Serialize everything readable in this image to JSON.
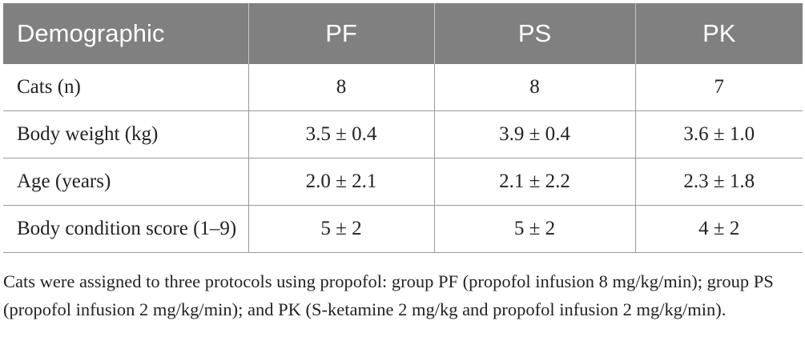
{
  "table": {
    "headers": [
      "Demographic",
      "PF",
      "PS",
      "PK"
    ],
    "rows": [
      {
        "label": "Cats (n)",
        "pf": "8",
        "ps": "8",
        "pk": "7"
      },
      {
        "label": "Body weight (kg)",
        "pf": "3.5 ± 0.4",
        "ps": "3.9 ± 0.4",
        "pk": "3.6 ± 1.0"
      },
      {
        "label": "Age (years)",
        "pf": "2.0 ± 2.1",
        "ps": "2.1 ± 2.2",
        "pk": "2.3 ± 1.8"
      },
      {
        "label": "Body condition score (1–9)",
        "pf": "5 ± 2",
        "ps": "5 ± 2",
        "pk": "4 ± 2"
      }
    ]
  },
  "caption": "Cats were assigned to three protocols using propofol: group PF (propofol infusion 8 mg/kg/min); group PS (propofol infusion 2 mg/kg/min); and PK (S-ketamine 2 mg/kg and propofol infusion 2 mg/kg/min).",
  "colors": {
    "header_bg": "#808080",
    "header_text": "#ffffff",
    "rule": "#9a9a9a",
    "body_text": "#222222"
  }
}
